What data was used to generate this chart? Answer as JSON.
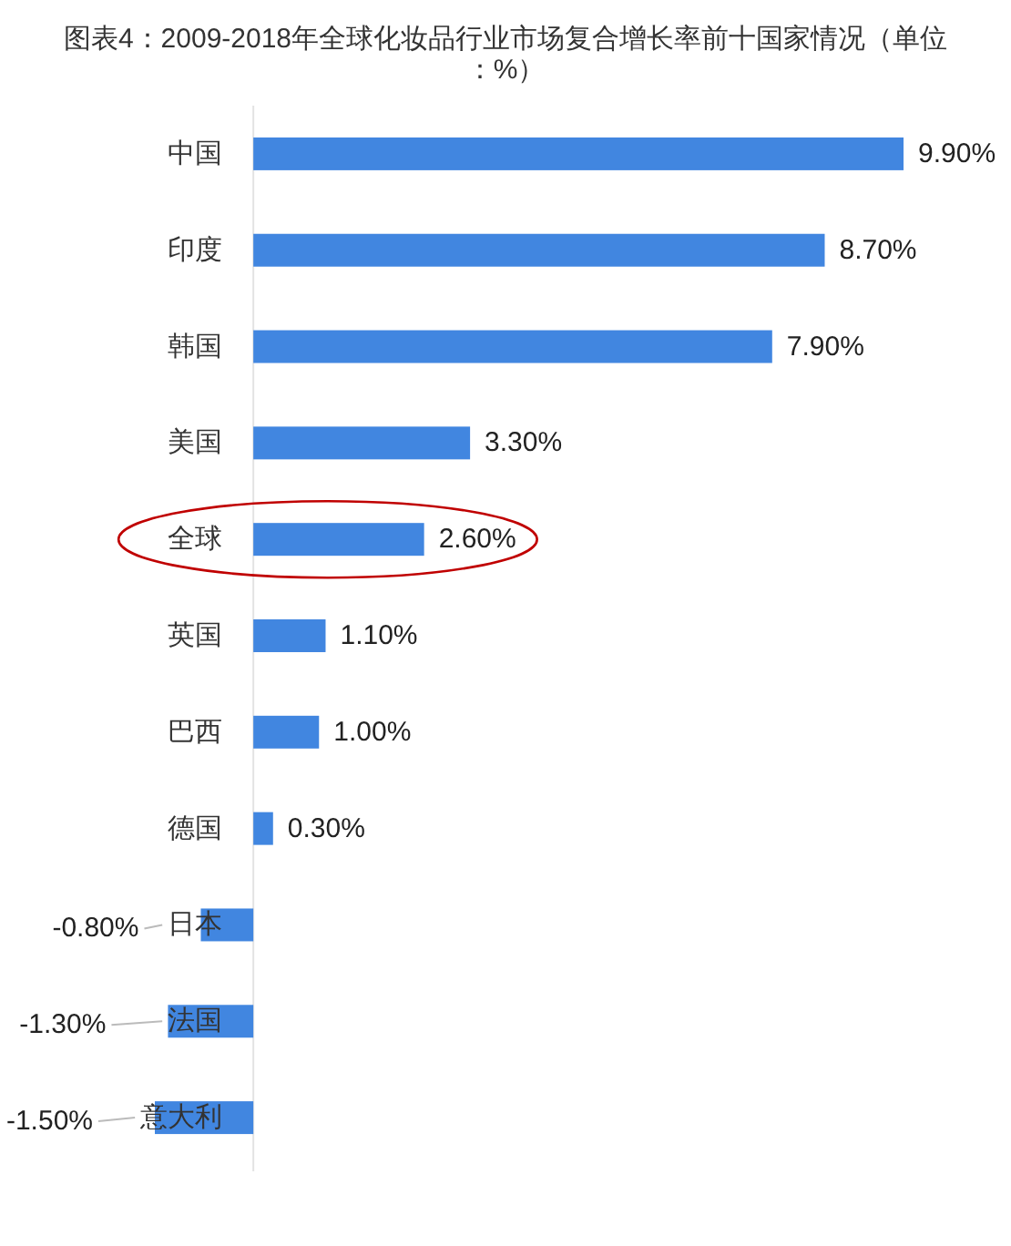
{
  "chart_data": {
    "type": "bar",
    "orientation": "horizontal",
    "title": "图表4：2009-2018年全球化妆品行业市场复合增长率前十国家情况（单位：%）",
    "categories": [
      "中国",
      "印度",
      "韩国",
      "美国",
      "全球",
      "英国",
      "巴西",
      "德国",
      "日本",
      "法国",
      "意大利"
    ],
    "values": [
      9.9,
      8.7,
      7.9,
      3.3,
      2.6,
      1.1,
      1.0,
      0.3,
      -0.8,
      -1.3,
      -1.5
    ],
    "color": "#4186e0",
    "value_labels": [
      "9.90%",
      "8.70%",
      "7.90%",
      "3.30%",
      "2.60%",
      "1.10%",
      "1.00%",
      "0.30%",
      "-0.80%",
      "-1.30%",
      "-1.50%"
    ]
  }
}
